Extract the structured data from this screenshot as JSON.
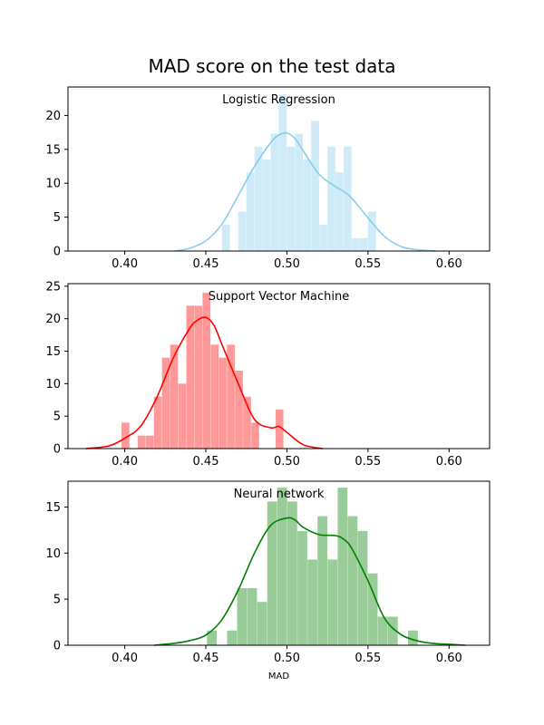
{
  "title": "MAD score on the test data",
  "chart_data": [
    {
      "type": "bar",
      "subtype": "histogram-with-kde",
      "title": "Logistic Regression",
      "color_bars": "#87ceeb",
      "color_kde": "#87ceeb",
      "xlim": [
        0.365,
        0.625
      ],
      "ylim": [
        0,
        24.2
      ],
      "xticks": [
        0.4,
        0.45,
        0.5,
        0.55,
        0.6
      ],
      "xtick_labels": [
        "0.40",
        "0.45",
        "0.50",
        "0.55",
        "0.60"
      ],
      "yticks": [
        0,
        5,
        10,
        15,
        20
      ],
      "ytick_labels": [
        "0",
        "5",
        "10",
        "15",
        "20"
      ],
      "bin_width": 0.005,
      "bins": [
        {
          "x": 0.46,
          "y": 3.9
        },
        {
          "x": 0.47,
          "y": 5.8
        },
        {
          "x": 0.475,
          "y": 11.6
        },
        {
          "x": 0.48,
          "y": 15.4
        },
        {
          "x": 0.485,
          "y": 13.5
        },
        {
          "x": 0.49,
          "y": 17.3
        },
        {
          "x": 0.495,
          "y": 23.1
        },
        {
          "x": 0.5,
          "y": 15.4
        },
        {
          "x": 0.505,
          "y": 17.3
        },
        {
          "x": 0.51,
          "y": 13.5
        },
        {
          "x": 0.515,
          "y": 19.2
        },
        {
          "x": 0.52,
          "y": 3.9
        },
        {
          "x": 0.525,
          "y": 15.4
        },
        {
          "x": 0.53,
          "y": 11.6
        },
        {
          "x": 0.535,
          "y": 15.4
        },
        {
          "x": 0.54,
          "y": 1.9
        },
        {
          "x": 0.545,
          "y": 1.9
        },
        {
          "x": 0.55,
          "y": 5.8
        }
      ],
      "kde": {
        "x": [
          0.431,
          0.44,
          0.45,
          0.46,
          0.47,
          0.48,
          0.49,
          0.495,
          0.5,
          0.505,
          0.51,
          0.52,
          0.53,
          0.535,
          0.54,
          0.55,
          0.56,
          0.57,
          0.58,
          0.592
        ],
        "y": [
          0.0,
          0.4,
          1.5,
          4.0,
          8.2,
          12.5,
          16.0,
          17.1,
          17.4,
          16.6,
          14.8,
          11.3,
          9.5,
          8.8,
          7.8,
          4.9,
          2.2,
          0.7,
          0.2,
          0.0
        ]
      }
    },
    {
      "type": "bar",
      "subtype": "histogram-with-kde",
      "title": "Support Vector Machine",
      "color_bars": "#ff9999",
      "color_kde": "#ff0000",
      "xlim": [
        0.365,
        0.625
      ],
      "ylim": [
        0,
        25.4
      ],
      "xticks": [
        0.4,
        0.45,
        0.5,
        0.55,
        0.6
      ],
      "xtick_labels": [
        "0.40",
        "0.45",
        "0.50",
        "0.55",
        "0.60"
      ],
      "yticks": [
        0,
        5,
        10,
        15,
        20,
        25
      ],
      "ytick_labels": [
        "0",
        "5",
        "10",
        "15",
        "20",
        "25"
      ],
      "bin_width": 0.005,
      "bins": [
        {
          "x": 0.398,
          "y": 4.0
        },
        {
          "x": 0.408,
          "y": 2.0
        },
        {
          "x": 0.413,
          "y": 2.0
        },
        {
          "x": 0.418,
          "y": 8.0
        },
        {
          "x": 0.423,
          "y": 14.0
        },
        {
          "x": 0.428,
          "y": 16.0
        },
        {
          "x": 0.433,
          "y": 10.0
        },
        {
          "x": 0.438,
          "y": 22.0
        },
        {
          "x": 0.443,
          "y": 22.0
        },
        {
          "x": 0.448,
          "y": 24.0
        },
        {
          "x": 0.453,
          "y": 16.0
        },
        {
          "x": 0.458,
          "y": 14.0
        },
        {
          "x": 0.463,
          "y": 16.0
        },
        {
          "x": 0.468,
          "y": 12.0
        },
        {
          "x": 0.473,
          "y": 8.0
        },
        {
          "x": 0.478,
          "y": 4.0
        },
        {
          "x": 0.493,
          "y": 6.0
        }
      ],
      "kde": {
        "x": [
          0.376,
          0.39,
          0.4,
          0.41,
          0.42,
          0.43,
          0.44,
          0.445,
          0.45,
          0.455,
          0.46,
          0.47,
          0.48,
          0.49,
          0.495,
          0.5,
          0.51,
          0.522
        ],
        "y": [
          0.0,
          0.4,
          1.6,
          3.5,
          8.0,
          14.0,
          18.5,
          19.8,
          20.2,
          19.0,
          16.0,
          10.0,
          4.5,
          3.2,
          3.4,
          2.5,
          0.6,
          0.0
        ]
      }
    },
    {
      "type": "bar",
      "subtype": "histogram-with-kde",
      "title": "Neural network",
      "color_bars": "#99cc99",
      "color_kde": "#008000",
      "xlim": [
        0.365,
        0.625
      ],
      "ylim": [
        0,
        17.8
      ],
      "xticks": [
        0.4,
        0.45,
        0.5,
        0.55,
        0.6
      ],
      "xtick_labels": [
        "0.40",
        "0.45",
        "0.50",
        "0.55",
        "0.60"
      ],
      "yticks": [
        0,
        5,
        10,
        15
      ],
      "ytick_labels": [
        "0",
        "5",
        "10",
        "15"
      ],
      "xlabel": "MAD",
      "bin_width": 0.0062,
      "bins": [
        {
          "x": 0.4507,
          "y": 1.6
        },
        {
          "x": 0.4631,
          "y": 1.6
        },
        {
          "x": 0.4693,
          "y": 6.2
        },
        {
          "x": 0.4755,
          "y": 6.2
        },
        {
          "x": 0.4817,
          "y": 4.7
        },
        {
          "x": 0.4879,
          "y": 15.6
        },
        {
          "x": 0.4941,
          "y": 17.1
        },
        {
          "x": 0.5003,
          "y": 15.6
        },
        {
          "x": 0.5065,
          "y": 12.4
        },
        {
          "x": 0.5127,
          "y": 9.3
        },
        {
          "x": 0.5189,
          "y": 14.0
        },
        {
          "x": 0.5251,
          "y": 9.3
        },
        {
          "x": 0.5313,
          "y": 17.1
        },
        {
          "x": 0.5375,
          "y": 14.0
        },
        {
          "x": 0.5437,
          "y": 12.4
        },
        {
          "x": 0.5499,
          "y": 7.8
        },
        {
          "x": 0.5561,
          "y": 3.1
        },
        {
          "x": 0.5623,
          "y": 3.1
        },
        {
          "x": 0.5747,
          "y": 1.6
        }
      ],
      "kde": {
        "x": [
          0.418,
          0.43,
          0.44,
          0.45,
          0.46,
          0.47,
          0.48,
          0.49,
          0.5,
          0.505,
          0.51,
          0.52,
          0.53,
          0.535,
          0.54,
          0.55,
          0.56,
          0.57,
          0.58,
          0.59,
          0.6,
          0.61
        ],
        "y": [
          0.0,
          0.2,
          0.5,
          1.1,
          2.8,
          6.0,
          10.0,
          13.0,
          13.8,
          13.6,
          12.8,
          12.0,
          11.9,
          11.5,
          10.5,
          7.0,
          3.0,
          1.2,
          0.5,
          0.2,
          0.1,
          0.0
        ]
      }
    }
  ]
}
